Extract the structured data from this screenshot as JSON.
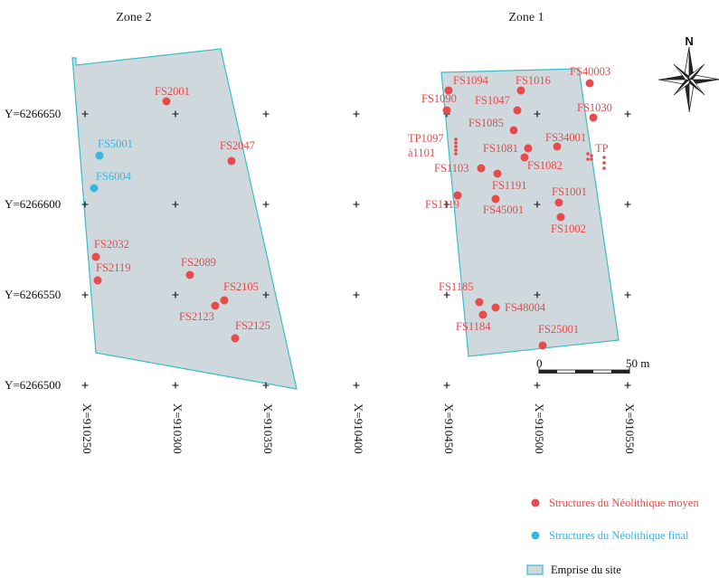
{
  "colors": {
    "neolithic_middle": "#e84b4b",
    "neolithic_final": "#3bb5e3",
    "site_fill": "#cfd8dc",
    "site_stroke": "#3bbdc8",
    "grid_cross": "#111111"
  },
  "zones": [
    {
      "title": "Zone 2"
    },
    {
      "title": "Zone 1"
    }
  ],
  "north_arrow": {
    "label": "N",
    "icon": "compass-rose-icon"
  },
  "y_axis": {
    "labels": [
      "Y=6266650",
      "Y=6266600",
      "Y=6266550",
      "Y=6266500"
    ],
    "values": [
      6266650,
      6266600,
      6266550,
      6266500
    ]
  },
  "x_axis": {
    "labels": [
      "X=910250",
      "X=910300",
      "X=910350",
      "X=910400",
      "X=910450",
      "X=910500",
      "X=910550"
    ],
    "values": [
      910250,
      910300,
      910350,
      910400,
      910450,
      910500,
      910550
    ]
  },
  "scale_bar": {
    "start_label": "0",
    "end_label": "50 m",
    "length_m": 50
  },
  "sites": [
    {
      "name": "Zone 2",
      "polygon": [
        [
          910243,
          6266681
        ],
        [
          910245,
          6266681
        ],
        [
          910245,
          6266677
        ],
        [
          910325,
          6266686
        ],
        [
          910367,
          6266498
        ],
        [
          910256,
          6266518
        ]
      ]
    },
    {
      "name": "Zone 1",
      "polygon": [
        [
          910447,
          6266673
        ],
        [
          910523,
          6266675
        ],
        [
          910545,
          6266525
        ],
        [
          910462,
          6266516
        ]
      ]
    }
  ],
  "features": [
    {
      "label": "FS2001",
      "x": 910295,
      "y": 6266657,
      "type": "middle"
    },
    {
      "label": "FS2047",
      "x": 910331,
      "y": 6266624,
      "type": "middle"
    },
    {
      "label": "FS5001",
      "x": 910258,
      "y": 6266627,
      "type": "final"
    },
    {
      "label": "FS6004",
      "x": 910255,
      "y": 6266609,
      "type": "final"
    },
    {
      "label": "FS2032",
      "x": 910256,
      "y": 6266571,
      "type": "middle"
    },
    {
      "label": "FS2119",
      "x": 910257,
      "y": 6266558,
      "type": "middle"
    },
    {
      "label": "FS2089",
      "x": 910308,
      "y": 6266561,
      "type": "middle"
    },
    {
      "label": "FS2105",
      "x": 910327,
      "y": 6266547,
      "type": "middle"
    },
    {
      "label": "FS2123",
      "x": 910322,
      "y": 6266544,
      "type": "middle"
    },
    {
      "label": "FS2125",
      "x": 910333,
      "y": 6266526,
      "type": "middle"
    },
    {
      "label": "FS1094",
      "x": 910451,
      "y": 6266663,
      "type": "middle"
    },
    {
      "label": "FS1016",
      "x": 910491,
      "y": 6266663,
      "type": "middle"
    },
    {
      "label": "FS40003",
      "x": 910529,
      "y": 6266667,
      "type": "middle"
    },
    {
      "label": "FS1090",
      "x": 910450,
      "y": 6266652,
      "type": "middle"
    },
    {
      "label": "FS1047",
      "x": 910489,
      "y": 6266652,
      "type": "middle"
    },
    {
      "label": "FS1030",
      "x": 910531,
      "y": 6266648,
      "type": "middle"
    },
    {
      "label": "FS1085",
      "x": 910487,
      "y": 6266641,
      "type": "middle"
    },
    {
      "label": "FS34001",
      "x": 910511,
      "y": 6266632,
      "type": "middle"
    },
    {
      "label": "FS1081",
      "x": 910495,
      "y": 6266631,
      "type": "middle"
    },
    {
      "label": "FS1082",
      "x": 910493,
      "y": 6266626,
      "type": "middle"
    },
    {
      "label": "FS1103",
      "x": 910469,
      "y": 6266620,
      "type": "middle"
    },
    {
      "label": "FS1191",
      "x": 910478,
      "y": 6266617,
      "type": "middle"
    },
    {
      "label": "FS1119",
      "x": 910456,
      "y": 6266605,
      "type": "middle"
    },
    {
      "label": "FS45001",
      "x": 910477,
      "y": 6266603,
      "type": "middle"
    },
    {
      "label": "FS1001",
      "x": 910512,
      "y": 6266601,
      "type": "middle"
    },
    {
      "label": "FS1002",
      "x": 910513,
      "y": 6266593,
      "type": "middle"
    },
    {
      "label": "FS1185",
      "x": 910468,
      "y": 6266546,
      "type": "middle"
    },
    {
      "label": "FS1184",
      "x": 910470,
      "y": 6266539,
      "type": "middle"
    },
    {
      "label": "FS48004",
      "x": 910477,
      "y": 6266543,
      "type": "middle"
    },
    {
      "label": "FS25001",
      "x": 910503,
      "y": 6266522,
      "type": "middle"
    }
  ],
  "dot_groups": [
    {
      "label": "TP1097 à1101",
      "type": "middle",
      "x": 910455,
      "y": [
        6266636,
        6266634,
        6266632,
        6266630,
        6266628
      ]
    },
    {
      "label": "TP",
      "type": "middle",
      "points": [
        [
          910528,
          6266628
        ],
        [
          910530,
          6266627
        ],
        [
          910528,
          6266625
        ],
        [
          910530,
          6266625
        ],
        [
          910537,
          6266626
        ],
        [
          910537,
          6266623
        ],
        [
          910537,
          6266620
        ]
      ]
    }
  ],
  "legend": [
    {
      "label": "Structures du Néolithique moyen",
      "kind": "dot",
      "type": "middle"
    },
    {
      "label": "Structures du Néolithique final",
      "kind": "dot",
      "type": "final"
    },
    {
      "label": "Emprise du site",
      "kind": "box"
    }
  ]
}
